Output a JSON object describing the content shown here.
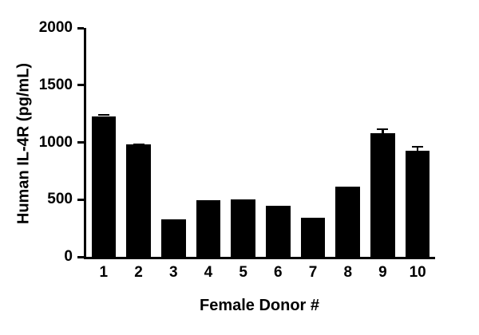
{
  "chart_data": {
    "type": "bar",
    "title": "",
    "xlabel": "Female Donor #",
    "ylabel": "Human IL-4R (pg/mL)",
    "categories": [
      "1",
      "2",
      "3",
      "4",
      "5",
      "6",
      "7",
      "8",
      "9",
      "10"
    ],
    "values": [
      1230,
      980,
      330,
      495,
      500,
      445,
      340,
      610,
      1080,
      930
    ],
    "errors": [
      20,
      10,
      0,
      0,
      0,
      0,
      0,
      0,
      45,
      40
    ],
    "ylim": [
      0,
      2000
    ],
    "ytick_step": 500,
    "bar_color": "#000000",
    "grid": false,
    "legend": "none"
  }
}
